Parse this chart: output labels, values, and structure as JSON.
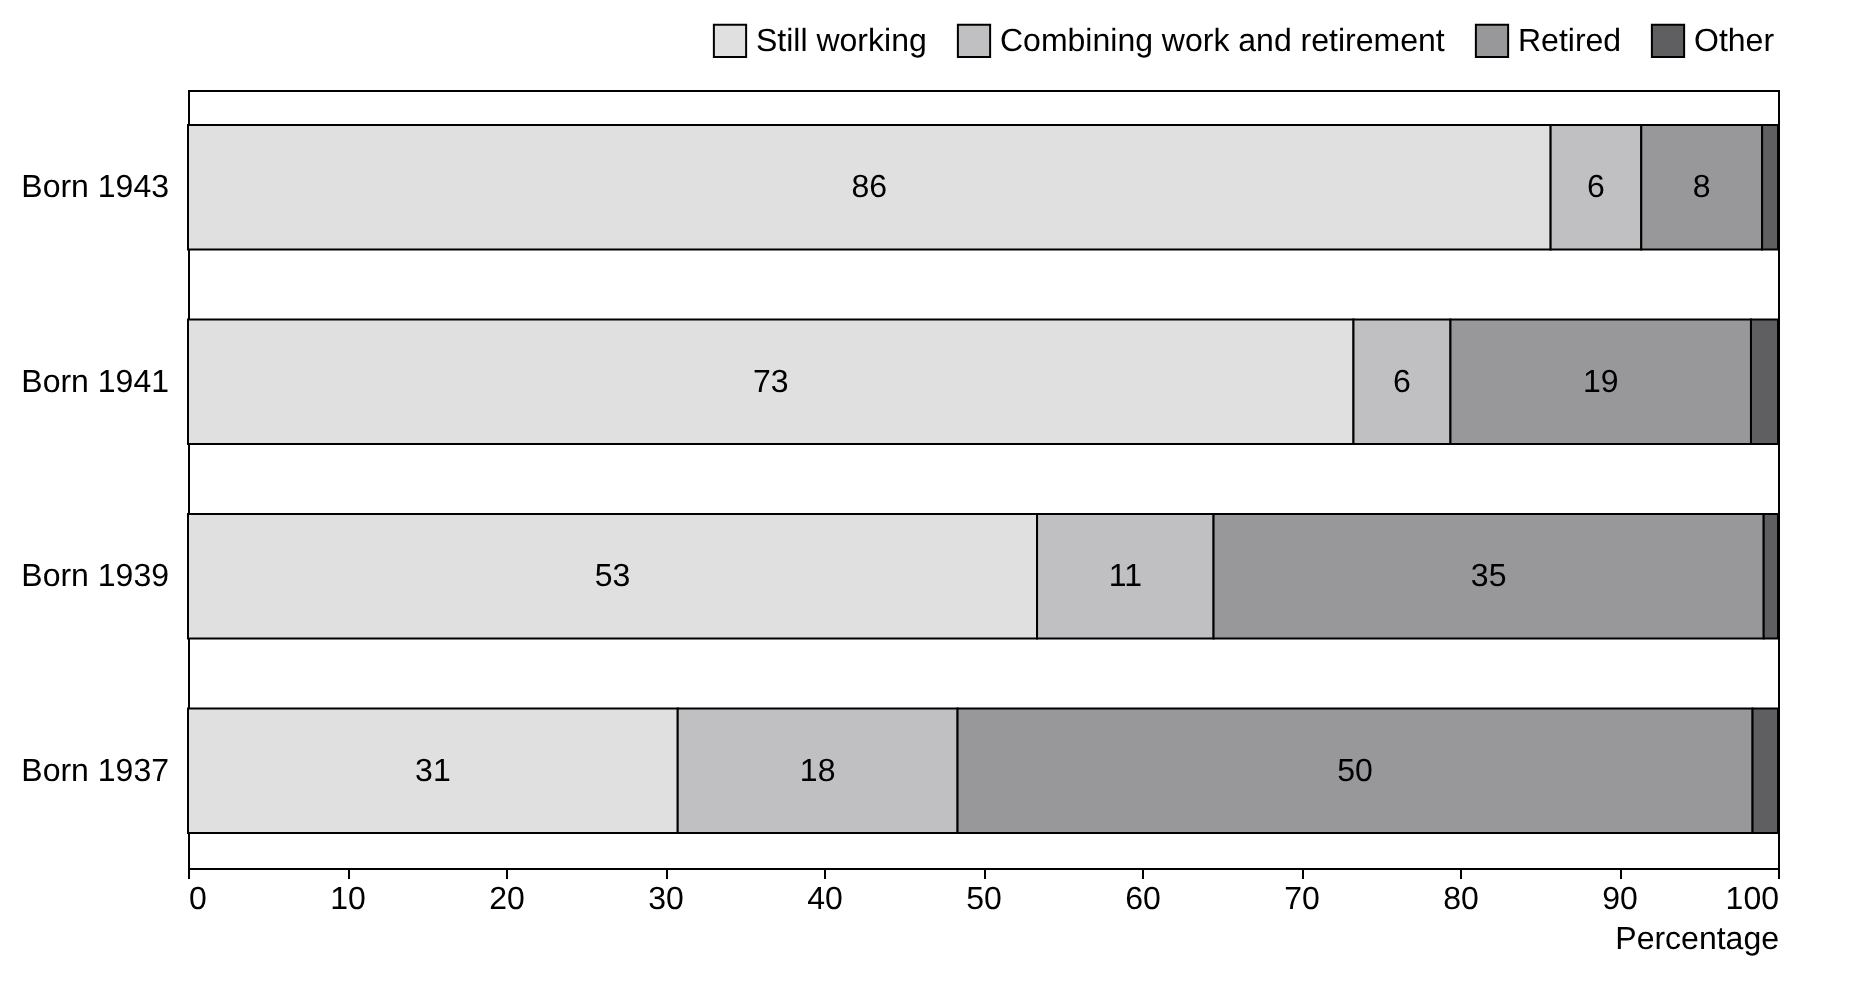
{
  "chart_data": {
    "type": "bar",
    "orientation": "horizontal",
    "stacked": true,
    "categories": [
      "Born 1943",
      "Born 1941",
      "Born 1939",
      "Born 1937"
    ],
    "series": [
      {
        "name": "Still working",
        "color": "#e0e0e0",
        "values": [
          85.7,
          73.3,
          53.4,
          30.8
        ],
        "value_labels": [
          "86",
          "73",
          "53",
          "31"
        ]
      },
      {
        "name": "Combining work and retirement",
        "color": "#c0c0c2",
        "values": [
          5.7,
          6.1,
          11.1,
          17.6
        ],
        "value_labels": [
          "6",
          "6",
          "11",
          "18"
        ]
      },
      {
        "name": "Retired",
        "color": "#98989b",
        "values": [
          7.6,
          18.9,
          34.6,
          50.0
        ],
        "value_labels": [
          "8",
          "19",
          "35",
          "50"
        ]
      },
      {
        "name": "Other",
        "color": "#5f5f62",
        "values": [
          1.0,
          1.7,
          0.9,
          1.6
        ],
        "value_labels": [
          null,
          null,
          null,
          null
        ]
      }
    ],
    "xlabel": "Percentage",
    "xlim": [
      0,
      100
    ],
    "xticks": [
      0,
      10,
      20,
      30,
      40,
      50,
      60,
      70,
      80,
      90,
      100
    ],
    "grid": false,
    "legend": "top right"
  }
}
